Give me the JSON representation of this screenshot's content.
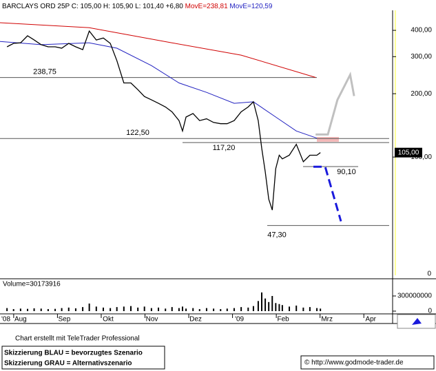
{
  "chart_data": {
    "type": "line",
    "title": "BARCLAYS ORD 25P C: 105,00 H: 105,90 L: 101,40 +6,80",
    "log_scale": true,
    "color": "#000000",
    "x": [
      -0.31,
      -0.16,
      0,
      0.16,
      0.31,
      0.47,
      0.63,
      0.79,
      0.94,
      1.1,
      1.26,
      1.42,
      1.57,
      1.73,
      1.89,
      2.05,
      2.2,
      2.36,
      2.52,
      2.68,
      2.83,
      2.99,
      3.15,
      3.31,
      3.46,
      3.62,
      3.7,
      3.78,
      3.94,
      4.09,
      4.25,
      4.41,
      4.57,
      4.72,
      4.88,
      5.04,
      5.2,
      5.32,
      5.43,
      5.51,
      5.59,
      5.67,
      5.75,
      5.83,
      5.91,
      5.98,
      6.14,
      6.3,
      6.46,
      6.61,
      6.77,
      6.85
    ],
    "values": [
      334,
      347,
      349,
      377,
      360,
      342,
      334,
      334,
      329,
      347,
      334,
      324,
      397,
      360,
      368,
      347,
      287,
      225,
      225,
      209,
      194,
      187,
      180,
      173,
      164,
      149,
      133,
      155,
      161,
      149,
      152,
      146,
      144,
      144,
      149,
      164,
      173,
      183,
      149,
      110,
      85,
      63,
      56,
      88,
      102,
      98,
      102,
      115,
      95,
      102,
      102,
      105
    ],
    "xlim": [
      -0.47,
      8.5
    ],
    "xticks": [
      {
        "value": 0,
        "label": "Aug"
      },
      {
        "value": 1,
        "label": "Sep"
      },
      {
        "value": 2,
        "label": "Okt"
      },
      {
        "value": 3,
        "label": "Nov"
      },
      {
        "value": 4,
        "label": "Dez"
      },
      {
        "value": 5,
        "label": "'09"
      },
      {
        "value": 6,
        "label": "Feb"
      },
      {
        "value": 7,
        "label": "Mrz"
      },
      {
        "value": 8,
        "label": "Apr"
      }
    ],
    "x_start_label": "'08",
    "ylim": [
      26.4,
      498
    ],
    "yticks": [
      {
        "value": 100,
        "label": "100,00"
      },
      {
        "value": 200,
        "label": "200,00"
      },
      {
        "value": 300,
        "label": "300,00"
      },
      {
        "value": 400,
        "label": "400,00"
      }
    ],
    "y_bottom_label": "0",
    "last_price": {
      "value": 105,
      "label": "105,00"
    },
    "moving_averages": [
      {
        "label": "MovE=238,81",
        "color": "#d00000",
        "x": [
          -0.47,
          1.57,
          3.46,
          5.04,
          6.74
        ],
        "values": [
          435,
          412,
          349,
          305,
          239
        ]
      },
      {
        "label": "MovE=120,59",
        "color": "#2020c0",
        "x": [
          -0.47,
          0.47,
          1.57,
          2.2,
          2.99,
          3.62,
          4.25,
          4.88,
          5.32,
          5.83,
          6.3,
          6.77
        ],
        "values": [
          354,
          342,
          349,
          329,
          272,
          225,
          203,
          180,
          183,
          155,
          133,
          123
        ]
      }
    ],
    "levels": [
      {
        "value": 238.75,
        "label": "238,75"
      },
      {
        "value": 122.5,
        "label": "122,50"
      },
      {
        "value": 117.2,
        "label": "117,20"
      },
      {
        "value": 90.1,
        "label": "90,10"
      },
      {
        "value": 47.3,
        "label": "47,30"
      }
    ],
    "scenarios": [
      {
        "label": "Skizzierung BLAU = bevorzugtes Szenario",
        "color": "#1a1adc",
        "dashed": true,
        "x": [
          6.69,
          6.96,
          7.32
        ],
        "values": [
          90,
          90,
          49.5
        ]
      },
      {
        "label": "Skizzierung GRAU = Alternativszenario",
        "color": "#c0c0c0",
        "dashed": false,
        "x": [
          6.74,
          7.02,
          7.24,
          7.53,
          7.62
        ],
        "values": [
          128,
          128,
          187,
          246,
          195
        ]
      }
    ],
    "volume": {
      "label": "Volume=30173916",
      "color": "#000000",
      "ylim": [
        0,
        600000000
      ],
      "yticks": [
        0,
        300000000
      ],
      "values": [
        60000000,
        40000000,
        50000000,
        45000000,
        55000000,
        50000000,
        40000000,
        45000000,
        60000000,
        70000000,
        55000000,
        80000000,
        150000000,
        90000000,
        70000000,
        60000000,
        80000000,
        90000000,
        100000000,
        70000000,
        90000000,
        60000000,
        70000000,
        50000000,
        80000000,
        60000000,
        90000000,
        50000000,
        60000000,
        40000000,
        60000000,
        50000000,
        40000000,
        50000000,
        60000000,
        80000000,
        70000000,
        100000000,
        200000000,
        370000000,
        250000000,
        180000000,
        300000000,
        160000000,
        140000000,
        120000000,
        90000000,
        110000000,
        70000000,
        80000000,
        60000000,
        50000000
      ]
    },
    "credit": "Chart erstellt mit TeleTrader Professional",
    "source": "© http://www.godmode-trader.de"
  }
}
